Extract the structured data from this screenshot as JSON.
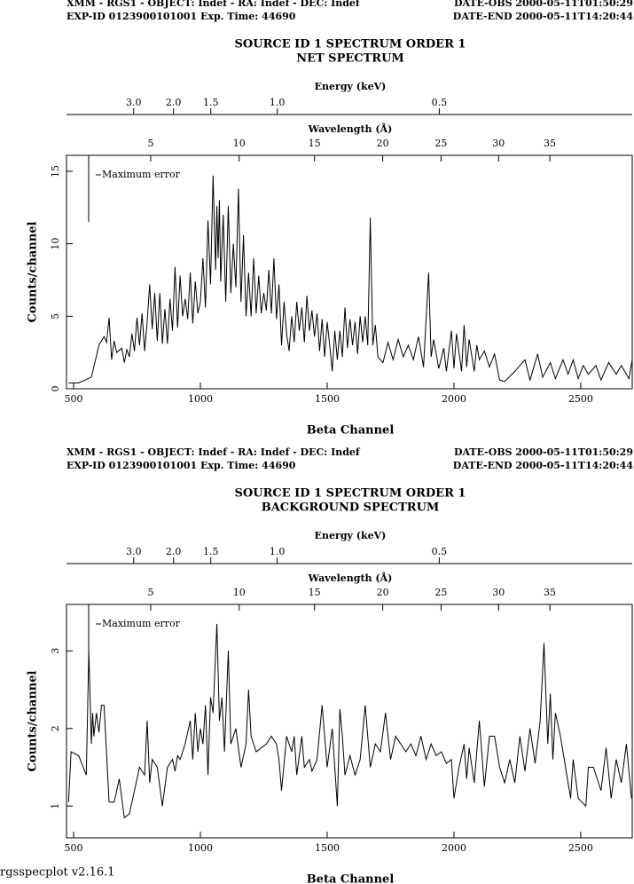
{
  "chart_data": [
    {
      "type": "line",
      "header_left": [
        "XMM - RGS1 - OBJECT: Indef - RA: Indef - DEC: Indef",
        "EXP-ID 0123900101001 Exp. Time: 44690"
      ],
      "header_right": [
        "DATE-OBS 2000-05-11T01:50:29",
        "DATE-END 2000-05-11T14:20:44"
      ],
      "title": "SOURCE ID 1 SPECTRUM ORDER 1",
      "subtitle": "NET SPECTRUM",
      "energy_axis": {
        "label": "Energy (keV)",
        "ticks": [
          {
            "value": 3,
            "label": "3.0",
            "channel": 737
          },
          {
            "value": 2,
            "label": "2.0",
            "channel": 894
          },
          {
            "value": 1.5,
            "label": "1.5",
            "channel": 1041
          },
          {
            "value": 1,
            "label": "1.0",
            "channel": 1303
          },
          {
            "value": 0.5,
            "label": "0.5",
            "channel": 1942
          }
        ]
      },
      "wavelength_axis": {
        "label": "Wavelength (Å)",
        "ticks": [
          {
            "value": 5,
            "channel": 804
          },
          {
            "value": 10,
            "channel": 1153
          },
          {
            "value": 15,
            "channel": 1450
          },
          {
            "value": 20,
            "channel": 1719
          },
          {
            "value": 25,
            "channel": 1949
          },
          {
            "value": 30,
            "channel": 2176
          },
          {
            "value": 35,
            "channel": 2378
          }
        ]
      },
      "xlabel": "Beta Channel",
      "ylabel": "Counts/channel",
      "xlim": [
        472,
        2703
      ],
      "xticks": [
        500,
        1000,
        1500,
        2000,
        2500
      ],
      "ylim": [
        0,
        16.1
      ],
      "yticks": [
        0,
        5,
        10,
        15
      ],
      "max_error": {
        "label": "Maximum error",
        "value": 4.6
      },
      "x": [
        480,
        520,
        570,
        600,
        620,
        630,
        640,
        650,
        660,
        670,
        690,
        700,
        710,
        720,
        730,
        740,
        750,
        760,
        770,
        780,
        790,
        800,
        810,
        820,
        830,
        840,
        850,
        860,
        870,
        880,
        890,
        900,
        910,
        920,
        930,
        940,
        950,
        960,
        970,
        980,
        990,
        1000,
        1010,
        1020,
        1030,
        1040,
        1050,
        1060,
        1065,
        1070,
        1075,
        1080,
        1090,
        1100,
        1110,
        1120,
        1130,
        1140,
        1150,
        1160,
        1170,
        1180,
        1190,
        1200,
        1210,
        1220,
        1230,
        1240,
        1250,
        1260,
        1270,
        1280,
        1290,
        1300,
        1310,
        1320,
        1330,
        1340,
        1350,
        1360,
        1370,
        1380,
        1390,
        1400,
        1410,
        1420,
        1430,
        1440,
        1450,
        1460,
        1470,
        1480,
        1490,
        1500,
        1510,
        1520,
        1530,
        1540,
        1550,
        1560,
        1570,
        1580,
        1590,
        1600,
        1610,
        1620,
        1630,
        1640,
        1650,
        1660,
        1670,
        1680,
        1690,
        1700,
        1720,
        1740,
        1760,
        1780,
        1800,
        1820,
        1840,
        1860,
        1880,
        1900,
        1910,
        1920,
        1940,
        1960,
        1970,
        1990,
        2000,
        2010,
        2030,
        2040,
        2050,
        2060,
        2080,
        2090,
        2100,
        2120,
        2140,
        2160,
        2180,
        2200,
        2240,
        2280,
        2300,
        2330,
        2350,
        2380,
        2400,
        2430,
        2450,
        2470,
        2490,
        2510,
        2530,
        2560,
        2580,
        2610,
        2640,
        2660,
        2690,
        2703
      ],
      "series": [
        {
          "color": "#000000",
          "values": [
            0.4,
            0.4,
            0.8,
            3.0,
            3.6,
            3.2,
            4.9,
            2.0,
            3.3,
            2.5,
            2.8,
            1.8,
            2.7,
            2.2,
            3.8,
            2.6,
            4.9,
            3.0,
            5.2,
            2.6,
            4.6,
            7.2,
            4.1,
            6.6,
            3.3,
            6.6,
            3.1,
            5.5,
            3.1,
            6.2,
            4.0,
            8.4,
            4.2,
            7.8,
            5.0,
            6.2,
            4.8,
            8.0,
            4.5,
            7.4,
            5.2,
            6.0,
            9.0,
            5.6,
            11.6,
            7.2,
            14.7,
            8.2,
            12.6,
            9.0,
            13.0,
            7.4,
            12.0,
            6.0,
            12.6,
            6.6,
            10.0,
            7.0,
            13.8,
            6.0,
            10.6,
            5.0,
            8.0,
            5.0,
            9.0,
            5.2,
            7.8,
            5.2,
            6.6,
            5.4,
            8.2,
            5.2,
            9.0,
            4.8,
            7.2,
            3.0,
            6.0,
            3.8,
            2.6,
            5.0,
            3.2,
            6.0,
            4.0,
            5.6,
            3.2,
            6.4,
            4.0,
            5.4,
            3.6,
            5.2,
            2.6,
            4.8,
            2.2,
            4.6,
            3.0,
            1.2,
            4.0,
            2.0,
            4.0,
            2.2,
            5.6,
            2.8,
            4.8,
            3.0,
            4.6,
            2.4,
            5.0,
            3.2,
            5.0,
            3.0,
            11.8,
            3.0,
            4.4,
            2.2,
            1.8,
            3.2,
            2.0,
            3.4,
            2.2,
            3.0,
            2.0,
            3.6,
            1.5,
            8.0,
            2.2,
            3.4,
            1.4,
            2.8,
            1.2,
            4.0,
            1.4,
            3.8,
            1.2,
            4.4,
            1.5,
            3.4,
            1.2,
            3.0,
            2.0,
            2.6,
            1.5,
            2.4,
            0.6,
            0.5,
            1.2,
            2.0,
            0.6,
            2.4,
            0.8,
            1.8,
            0.7,
            2.0,
            1.0,
            2.0,
            0.7,
            1.6,
            1.0,
            1.6,
            0.6,
            1.8,
            1.0,
            1.6,
            0.7,
            2.0
          ]
        }
      ]
    },
    {
      "type": "line",
      "header_left": [
        "XMM - RGS1 - OBJECT: Indef - RA: Indef - DEC: Indef",
        "EXP-ID 0123900101001 Exp. Time: 44690"
      ],
      "header_right": [
        "DATE-OBS 2000-05-11T01:50:29",
        "DATE-END 2000-05-11T14:20:44"
      ],
      "title": "SOURCE ID 1 SPECTRUM ORDER 1",
      "subtitle": "BACKGROUND SPECTRUM",
      "energy_axis": {
        "label": "Energy (keV)",
        "ticks": [
          {
            "value": 3,
            "label": "3.0",
            "channel": 737
          },
          {
            "value": 2,
            "label": "2.0",
            "channel": 894
          },
          {
            "value": 1.5,
            "label": "1.5",
            "channel": 1041
          },
          {
            "value": 1,
            "label": "1.0",
            "channel": 1303
          },
          {
            "value": 0.5,
            "label": "0.5",
            "channel": 1942
          }
        ]
      },
      "wavelength_axis": {
        "label": "Wavelength (Å)",
        "ticks": [
          {
            "value": 5,
            "channel": 804
          },
          {
            "value": 10,
            "channel": 1153
          },
          {
            "value": 15,
            "channel": 1450
          },
          {
            "value": 20,
            "channel": 1719
          },
          {
            "value": 25,
            "channel": 1949
          },
          {
            "value": 30,
            "channel": 2176
          },
          {
            "value": 35,
            "channel": 2378
          }
        ]
      },
      "xlabel": "Beta Channel",
      "ylabel": "Counts/channel",
      "xlim": [
        472,
        2703
      ],
      "xticks": [
        500,
        1000,
        1500,
        2000,
        2500
      ],
      "ylim": [
        0.59,
        3.6
      ],
      "yticks": [
        1,
        2,
        3
      ],
      "max_error": {
        "label": "Maximum error",
        "value": 0.87
      },
      "x": [
        480,
        490,
        520,
        550,
        560,
        570,
        575,
        580,
        590,
        600,
        610,
        620,
        640,
        660,
        680,
        700,
        720,
        740,
        760,
        780,
        790,
        800,
        810,
        830,
        850,
        870,
        890,
        900,
        910,
        920,
        940,
        960,
        970,
        980,
        990,
        1000,
        1010,
        1020,
        1030,
        1040,
        1050,
        1065,
        1075,
        1085,
        1095,
        1110,
        1120,
        1140,
        1160,
        1180,
        1190,
        1200,
        1220,
        1260,
        1280,
        1300,
        1310,
        1320,
        1340,
        1360,
        1370,
        1380,
        1400,
        1410,
        1430,
        1440,
        1460,
        1480,
        1500,
        1520,
        1540,
        1550,
        1560,
        1570,
        1590,
        1610,
        1630,
        1650,
        1670,
        1690,
        1710,
        1730,
        1750,
        1770,
        1790,
        1810,
        1830,
        1850,
        1870,
        1890,
        1910,
        1930,
        1950,
        1970,
        1990,
        2000,
        2020,
        2040,
        2050,
        2060,
        2080,
        2100,
        2120,
        2140,
        2160,
        2180,
        2200,
        2220,
        2240,
        2260,
        2280,
        2300,
        2320,
        2340,
        2355,
        2370,
        2380,
        2390,
        2400,
        2420,
        2440,
        2460,
        2470,
        2490,
        2520,
        2530,
        2550,
        2580,
        2600,
        2620,
        2640,
        2660,
        2680,
        2700
      ],
      "series": [
        {
          "color": "#000000",
          "values": [
            1.05,
            1.7,
            1.65,
            1.4,
            3.0,
            1.8,
            2.2,
            1.9,
            2.2,
            1.95,
            2.3,
            2.3,
            1.05,
            1.05,
            1.35,
            0.85,
            0.9,
            1.2,
            1.5,
            1.4,
            2.1,
            1.3,
            1.6,
            1.5,
            1.0,
            1.5,
            1.6,
            1.45,
            1.65,
            1.6,
            1.8,
            2.1,
            1.6,
            2.2,
            1.7,
            2.0,
            1.8,
            2.3,
            1.4,
            2.4,
            2.2,
            3.35,
            2.1,
            2.4,
            1.7,
            3.0,
            1.8,
            2.0,
            1.5,
            1.8,
            2.5,
            1.9,
            1.7,
            1.8,
            1.9,
            1.8,
            1.6,
            1.2,
            1.9,
            1.7,
            1.9,
            1.4,
            1.9,
            1.5,
            1.6,
            1.45,
            1.6,
            2.3,
            1.5,
            2.0,
            1.0,
            2.25,
            1.9,
            1.4,
            1.65,
            1.4,
            1.6,
            2.3,
            1.5,
            1.8,
            1.7,
            2.2,
            1.6,
            1.9,
            1.8,
            1.7,
            1.8,
            1.65,
            1.9,
            1.6,
            1.8,
            1.65,
            1.7,
            1.55,
            1.6,
            1.1,
            1.5,
            1.8,
            1.35,
            1.75,
            1.3,
            2.1,
            1.25,
            1.9,
            1.9,
            1.5,
            1.3,
            1.6,
            1.3,
            1.9,
            1.45,
            2.0,
            1.55,
            2.1,
            3.1,
            1.8,
            2.45,
            1.6,
            2.2,
            1.9,
            1.5,
            1.1,
            1.6,
            1.1,
            1.0,
            1.5,
            1.5,
            1.2,
            1.75,
            1.1,
            1.6,
            1.3,
            1.8,
            1.1
          ]
        }
      ]
    }
  ],
  "footer": "rgsspecplot v2.16.1"
}
